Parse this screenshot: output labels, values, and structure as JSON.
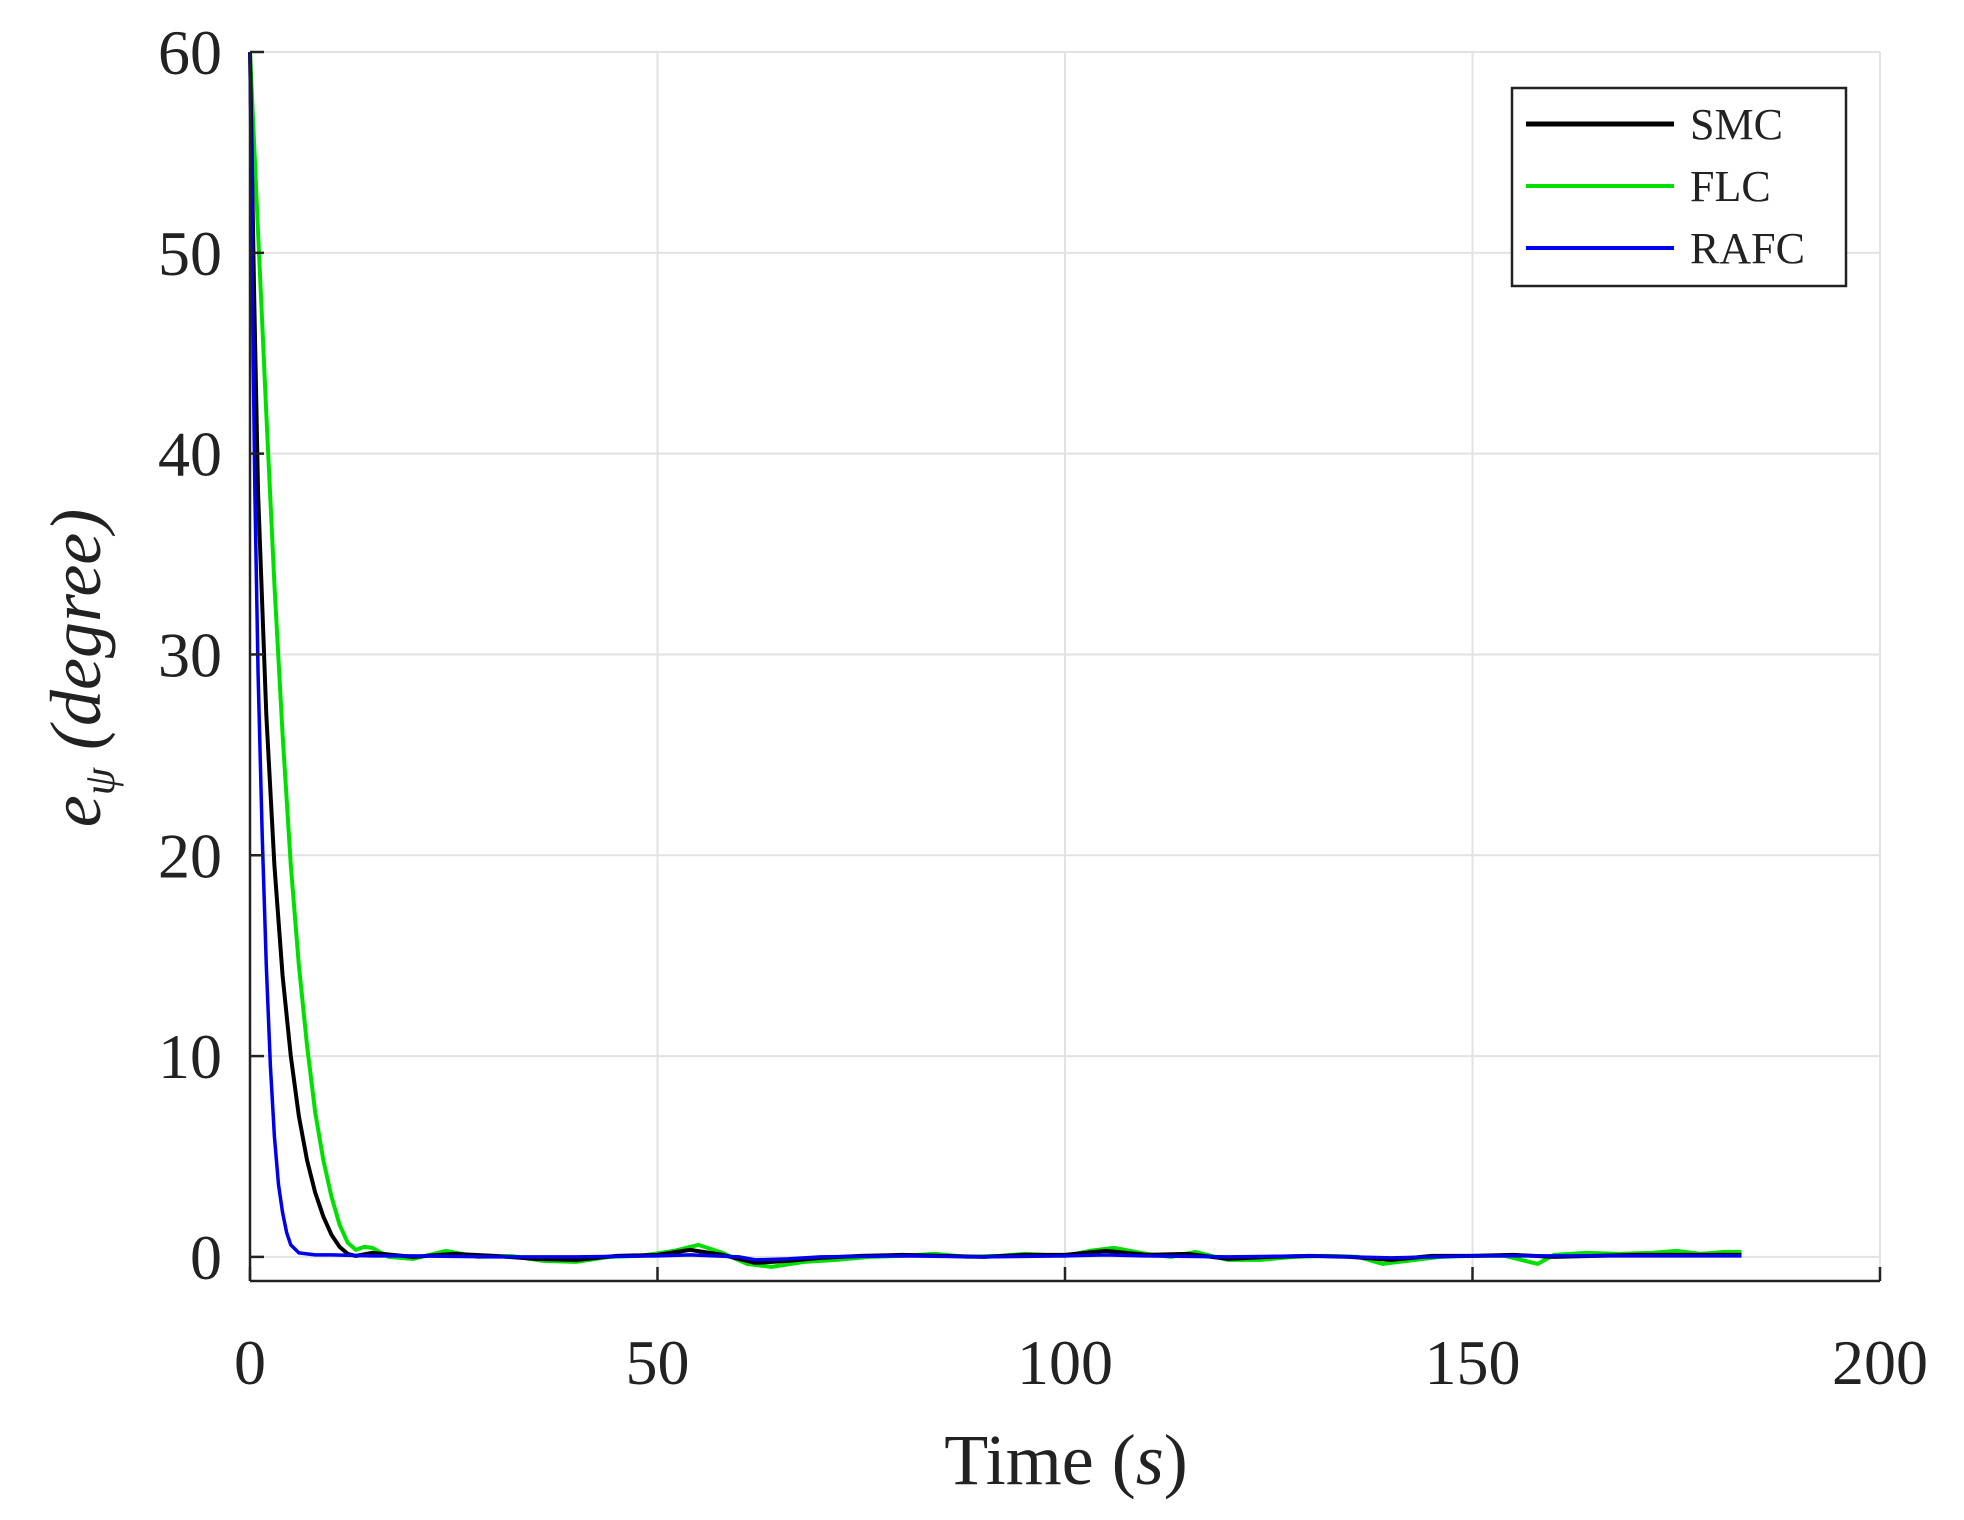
{
  "chart_data": {
    "type": "line",
    "xlabel": "Time (s)",
    "xlabel_main": "Time",
    "xlabel_unit": "s",
    "ylabel": "e_ψ (degree)",
    "ylabel_symbol": "e",
    "ylabel_subscript": "ψ",
    "ylabel_unit": "degree",
    "xlim": [
      0,
      200
    ],
    "ylim": [
      -1.2,
      60
    ],
    "xticks": [
      0,
      50,
      100,
      150,
      200
    ],
    "yticks": [
      0,
      10,
      20,
      30,
      40,
      50,
      60
    ],
    "grid": true,
    "legend_position": "top-right",
    "series": [
      {
        "name": "SMC",
        "color": "#000000",
        "points": [
          [
            0,
            60
          ],
          [
            0.5,
            48
          ],
          [
            1,
            38
          ],
          [
            2,
            27
          ],
          [
            3,
            19.5
          ],
          [
            4,
            14
          ],
          [
            5,
            10
          ],
          [
            6,
            7
          ],
          [
            7,
            4.8
          ],
          [
            8,
            3.2
          ],
          [
            9,
            2
          ],
          [
            10,
            1.1
          ],
          [
            11,
            0.5
          ],
          [
            12,
            0.15
          ],
          [
            13,
            0.05
          ],
          [
            15,
            0.2
          ],
          [
            20,
            0.0
          ],
          [
            25,
            0.15
          ],
          [
            30,
            0.05
          ],
          [
            35,
            -0.1
          ],
          [
            40,
            -0.15
          ],
          [
            45,
            0.05
          ],
          [
            50,
            0.1
          ],
          [
            54,
            0.35
          ],
          [
            58,
            0.1
          ],
          [
            62,
            -0.3
          ],
          [
            66,
            -0.2
          ],
          [
            70,
            -0.05
          ],
          [
            75,
            0.05
          ],
          [
            80,
            0.1
          ],
          [
            85,
            0.05
          ],
          [
            90,
            0.0
          ],
          [
            95,
            0.1
          ],
          [
            100,
            0.1
          ],
          [
            105,
            0.3
          ],
          [
            110,
            0.1
          ],
          [
            115,
            0.15
          ],
          [
            120,
            -0.1
          ],
          [
            125,
            0.0
          ],
          [
            130,
            0.05
          ],
          [
            135,
            0.0
          ],
          [
            140,
            -0.15
          ],
          [
            145,
            0.05
          ],
          [
            150,
            0.05
          ],
          [
            155,
            0.1
          ],
          [
            160,
            0.0
          ],
          [
            165,
            0.05
          ],
          [
            170,
            0.1
          ],
          [
            175,
            0.1
          ],
          [
            180,
            0.1
          ],
          [
            183,
            0.1
          ]
        ]
      },
      {
        "name": "FLC",
        "color": "#00e000",
        "points": [
          [
            0,
            60
          ],
          [
            1,
            51
          ],
          [
            2,
            42
          ],
          [
            3,
            33.5
          ],
          [
            4,
            26
          ],
          [
            5,
            19.5
          ],
          [
            6,
            14.5
          ],
          [
            7,
            10.5
          ],
          [
            8,
            7.2
          ],
          [
            9,
            4.8
          ],
          [
            10,
            3
          ],
          [
            11,
            1.6
          ],
          [
            12,
            0.7
          ],
          [
            13,
            0.35
          ],
          [
            14,
            0.5
          ],
          [
            15,
            0.45
          ],
          [
            17,
            0.0
          ],
          [
            20,
            -0.1
          ],
          [
            24,
            0.3
          ],
          [
            28,
            0.0
          ],
          [
            32,
            0.05
          ],
          [
            36,
            -0.2
          ],
          [
            40,
            -0.25
          ],
          [
            44,
            0.0
          ],
          [
            48,
            0.05
          ],
          [
            52,
            0.3
          ],
          [
            55,
            0.6
          ],
          [
            58,
            0.2
          ],
          [
            61,
            -0.35
          ],
          [
            64,
            -0.5
          ],
          [
            68,
            -0.25
          ],
          [
            72,
            -0.15
          ],
          [
            76,
            0.0
          ],
          [
            80,
            0.05
          ],
          [
            84,
            0.15
          ],
          [
            88,
            0.0
          ],
          [
            92,
            0.05
          ],
          [
            95,
            0.15
          ],
          [
            100,
            0.05
          ],
          [
            103,
            0.3
          ],
          [
            106,
            0.45
          ],
          [
            110,
            0.15
          ],
          [
            113,
            0.0
          ],
          [
            116,
            0.25
          ],
          [
            120,
            -0.15
          ],
          [
            124,
            -0.15
          ],
          [
            128,
            0.0
          ],
          [
            132,
            0.05
          ],
          [
            136,
            0.0
          ],
          [
            139,
            -0.35
          ],
          [
            142,
            -0.2
          ],
          [
            146,
            0.0
          ],
          [
            150,
            0.05
          ],
          [
            154,
            0.05
          ],
          [
            158,
            -0.35
          ],
          [
            160,
            0.1
          ],
          [
            164,
            0.2
          ],
          [
            168,
            0.15
          ],
          [
            172,
            0.2
          ],
          [
            175,
            0.3
          ],
          [
            178,
            0.15
          ],
          [
            181,
            0.25
          ],
          [
            183,
            0.25
          ]
        ]
      },
      {
        "name": "RAFC",
        "color": "#0000ee",
        "points": [
          [
            0,
            60
          ],
          [
            0.3,
            48
          ],
          [
            0.6,
            38
          ],
          [
            1,
            29
          ],
          [
            1.5,
            21
          ],
          [
            2,
            14.5
          ],
          [
            2.5,
            9.5
          ],
          [
            3,
            6
          ],
          [
            3.5,
            3.6
          ],
          [
            4,
            2.2
          ],
          [
            4.5,
            1.2
          ],
          [
            5,
            0.6
          ],
          [
            6,
            0.2
          ],
          [
            8,
            0.1
          ],
          [
            10,
            0.1
          ],
          [
            15,
            0.05
          ],
          [
            20,
            0.05
          ],
          [
            30,
            0.0
          ],
          [
            40,
            0.0
          ],
          [
            50,
            0.05
          ],
          [
            54,
            0.1
          ],
          [
            60,
            0.0
          ],
          [
            62,
            -0.15
          ],
          [
            66,
            -0.1
          ],
          [
            70,
            0.0
          ],
          [
            80,
            0.05
          ],
          [
            90,
            0.0
          ],
          [
            100,
            0.05
          ],
          [
            105,
            0.1
          ],
          [
            110,
            0.05
          ],
          [
            120,
            0.0
          ],
          [
            130,
            0.05
          ],
          [
            140,
            -0.05
          ],
          [
            150,
            0.05
          ],
          [
            160,
            0.05
          ],
          [
            170,
            0.05
          ],
          [
            180,
            0.05
          ],
          [
            183,
            0.05
          ]
        ]
      }
    ]
  }
}
